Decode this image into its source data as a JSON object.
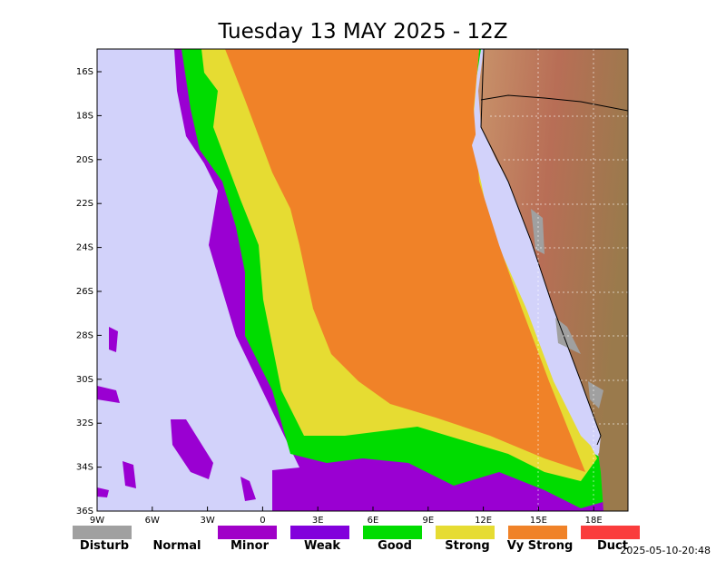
{
  "title": "Tuesday 13 MAY 2025 - 12Z",
  "lat_labels": [
    "16S",
    "18S",
    "20S",
    "22S",
    "24S",
    "26S",
    "28S",
    "30S",
    "32S",
    "34S",
    "36S"
  ],
  "lon_labels": [
    "9W",
    "6W",
    "3W",
    "0",
    "3E",
    "6E",
    "9E",
    "12E",
    "15E",
    "18E"
  ],
  "legend": [
    {
      "label": "Disturb",
      "color": "#a0a0a0"
    },
    {
      "label": "Normal"
    },
    {
      "label": "Minor",
      "color": "#a000c8"
    },
    {
      "label": "Weak",
      "color": "#8200dc"
    },
    {
      "label": "Good",
      "color": "#00dc00"
    },
    {
      "label": "Strong",
      "color": "#e6dc32"
    },
    {
      "label": "Vy Strong",
      "color": "#f08228"
    },
    {
      "label": "Duct",
      "color": "#fa3c3c"
    }
  ],
  "timestamp": "2025-05-10-20:48"
}
